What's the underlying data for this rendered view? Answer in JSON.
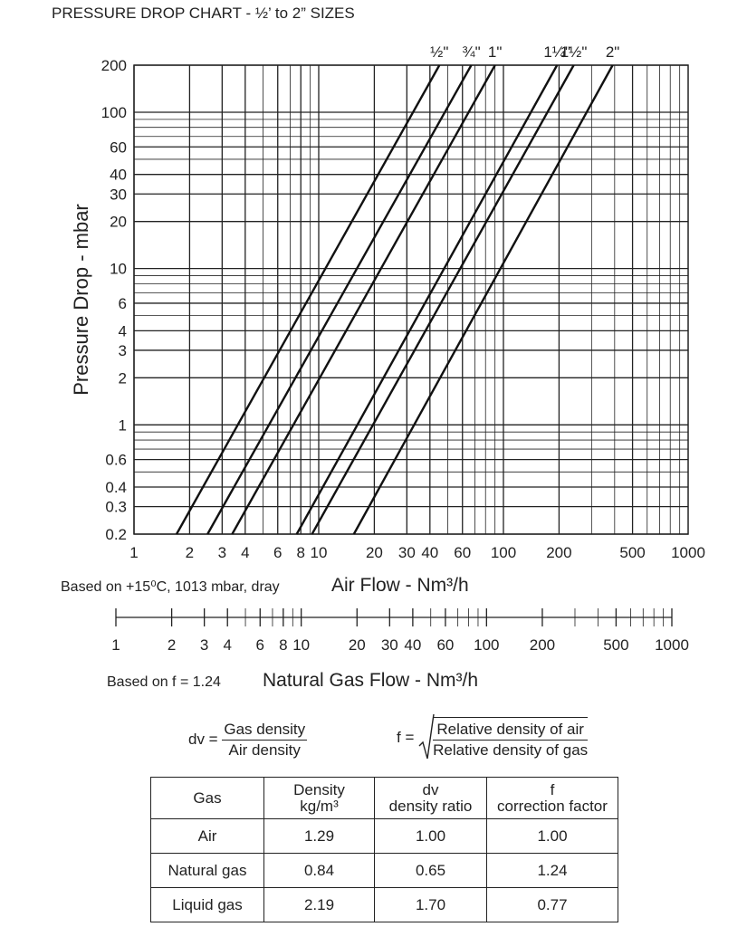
{
  "title": "PRESSURE DROP CHART - ½’ to 2” SIZES",
  "chart_data": {
    "type": "line",
    "xscale": "log",
    "yscale": "log",
    "xlim": [
      1,
      1000
    ],
    "ylim": [
      0.2,
      200
    ],
    "grid": true,
    "ylabel": "Pressure Drop - mbar",
    "xlabel": "Air Flow - Nm³/h",
    "x_conditions": "Based on +15⁰C, 1013 mbar, dray",
    "xticks": [
      1,
      2,
      3,
      4,
      6,
      8,
      10,
      20,
      30,
      40,
      60,
      100,
      200,
      500,
      1000
    ],
    "xtick_labels": [
      "1",
      "2",
      "3",
      "4",
      "6",
      "8",
      "10",
      "20",
      "30",
      "40",
      "60",
      "100",
      "200",
      "500",
      "1000"
    ],
    "yticks": [
      0.2,
      0.3,
      0.4,
      0.6,
      1,
      2,
      3,
      4,
      6,
      10,
      20,
      30,
      40,
      60,
      100,
      200
    ],
    "ytick_labels": [
      "0.2",
      "0.3",
      "0.4",
      "0.6",
      "1",
      "2",
      "3",
      "4",
      "6",
      "10",
      "20",
      "30",
      "40",
      "60",
      "100",
      "200"
    ],
    "series": [
      {
        "name": "½\"",
        "x": [
          1.7,
          45
        ],
        "y": [
          0.2,
          200
        ]
      },
      {
        "name": "¾\"",
        "x": [
          2.5,
          67
        ],
        "y": [
          0.2,
          200
        ]
      },
      {
        "name": "1\"",
        "x": [
          3.4,
          90
        ],
        "y": [
          0.2,
          200
        ]
      },
      {
        "name": "1¼\"",
        "x": [
          7.6,
          195
        ],
        "y": [
          0.2,
          200
        ]
      },
      {
        "name": "1½\"",
        "x": [
          9.2,
          240
        ],
        "y": [
          0.2,
          200
        ]
      },
      {
        "name": "2\"",
        "x": [
          15.5,
          390
        ],
        "y": [
          0.2,
          200
        ]
      }
    ]
  },
  "gas_scale": {
    "label": "Natural Gas Flow - Nm³/h",
    "conditions": "Based on f  = 1.24",
    "ticks": [
      1,
      2,
      3,
      4,
      6,
      8,
      10,
      20,
      30,
      40,
      60,
      100,
      200,
      500,
      1000
    ],
    "tick_labels": [
      "1",
      "2",
      "3",
      "4",
      "6",
      "8",
      "10",
      "20",
      "30",
      "40",
      "60",
      "100",
      "200",
      "500",
      "1000"
    ]
  },
  "formulas": {
    "dv_lhs": "dv =",
    "dv_num": "Gas density",
    "dv_den": "Air density",
    "f_lhs": "f =",
    "f_num": "Relative density of air",
    "f_den": "Relative density of gas"
  },
  "table": {
    "headers": [
      [
        "Gas"
      ],
      [
        "Density",
        "kg/m³"
      ],
      [
        "dv",
        "density ratio"
      ],
      [
        "f",
        "correction factor"
      ]
    ],
    "rows": [
      [
        "Air",
        "1.29",
        "1.00",
        "1.00"
      ],
      [
        "Natural gas",
        "0.84",
        "0.65",
        "1.24"
      ],
      [
        "Liquid gas",
        "2.19",
        "1.70",
        "0.77"
      ]
    ]
  }
}
